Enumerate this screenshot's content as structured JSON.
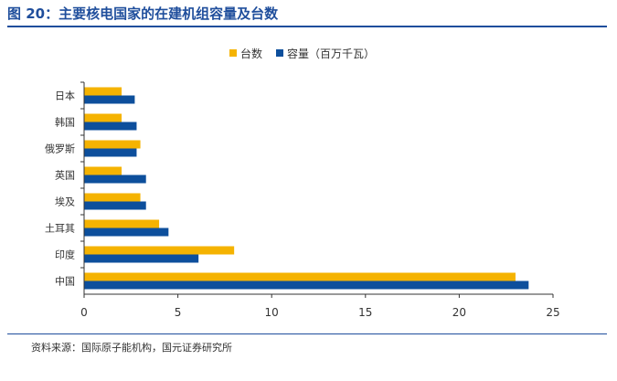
{
  "header": {
    "title": "图 20：主要核电国家的在建机组容量及台数"
  },
  "footer": {
    "source": "资料来源：国际原子能机构，国元证券研究所"
  },
  "colors": {
    "title": "#1f4e9c",
    "series_units": "#f5b301",
    "series_capacity": "#0d4f9c",
    "axis": "#333333"
  },
  "chart_data": {
    "type": "bar",
    "orientation": "horizontal",
    "categories": [
      "日本",
      "韩国",
      "俄罗斯",
      "英国",
      "埃及",
      "土耳其",
      "印度",
      "中国"
    ],
    "series": [
      {
        "name": "台数",
        "values": [
          2,
          2,
          3,
          2,
          3,
          4,
          8,
          23
        ]
      },
      {
        "name": "容量（百万千瓦）",
        "values": [
          2.7,
          2.8,
          2.8,
          3.3,
          3.3,
          4.5,
          6.1,
          23.7
        ]
      }
    ],
    "xlim": [
      0,
      25
    ],
    "xticks": [
      "0",
      "5",
      "10",
      "15",
      "20",
      "25"
    ],
    "xtick_values": [
      0,
      5,
      10,
      15,
      20,
      25
    ],
    "legend_position": "top",
    "grid": false
  }
}
